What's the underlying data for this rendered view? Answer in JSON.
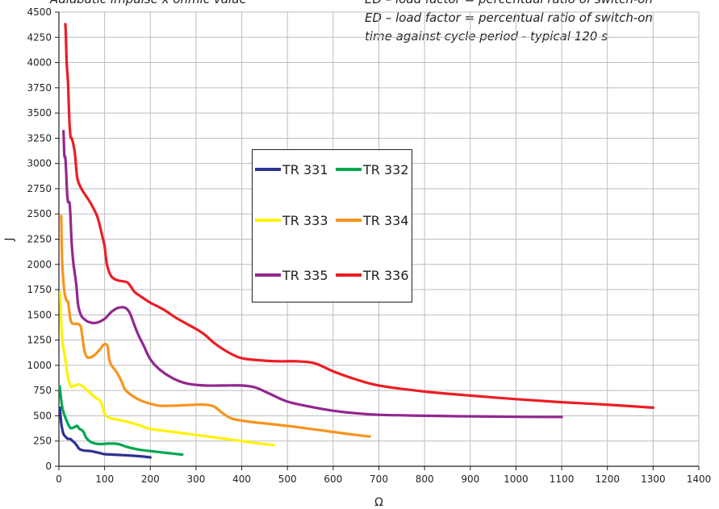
{
  "notes": {
    "left": "Adiabatic impulse x ohmic value",
    "right_lines": [
      "ED – load factor = percentual ratio of switch-on",
      "ED – load factor = percentual ratio of switch-on",
      "time against cycle period - typical 120 s"
    ]
  },
  "colors": {
    "grid": "#bdbdbd",
    "axis": "#231f20",
    "TR 331": "#2e3192",
    "TR 332": "#00a651",
    "TR 333": "#fff200",
    "TR 334": "#f7941d",
    "TR 335": "#92278f",
    "TR 336": "#ed1c24"
  },
  "chart_data": {
    "type": "line",
    "title": "",
    "xlabel": "Ω",
    "ylabel": "J",
    "xlim": [
      0,
      1400
    ],
    "ylim": [
      0,
      4500
    ],
    "xticks": [
      "0",
      "100",
      "200",
      "300",
      "400",
      "500",
      "600",
      "700",
      "800",
      "900",
      "1000",
      "1100",
      "1200",
      "1300",
      "1400"
    ],
    "yticks": [
      "0",
      "250",
      "500",
      "750",
      "1000",
      "1250",
      "1500",
      "1750",
      "2000",
      "2250",
      "2500",
      "2750",
      "3000",
      "3250",
      "3500",
      "3750",
      "4000",
      "4250",
      "4500"
    ],
    "grid": true,
    "legend_position": "center",
    "series": [
      {
        "name": "TR 331",
        "points": [
          [
            2,
            580
          ],
          [
            4,
            480
          ],
          [
            6,
            400
          ],
          [
            10,
            320
          ],
          [
            15,
            290
          ],
          [
            20,
            270
          ],
          [
            25,
            270
          ],
          [
            30,
            250
          ],
          [
            35,
            230
          ],
          [
            40,
            200
          ],
          [
            45,
            170
          ],
          [
            55,
            155
          ],
          [
            70,
            150
          ],
          [
            90,
            130
          ],
          [
            100,
            120
          ],
          [
            120,
            115
          ],
          [
            150,
            108
          ],
          [
            175,
            100
          ],
          [
            200,
            88
          ]
        ]
      },
      {
        "name": "TR 332",
        "points": [
          [
            2,
            790
          ],
          [
            4,
            690
          ],
          [
            8,
            570
          ],
          [
            12,
            510
          ],
          [
            16,
            460
          ],
          [
            20,
            420
          ],
          [
            25,
            380
          ],
          [
            30,
            380
          ],
          [
            35,
            390
          ],
          [
            40,
            400
          ],
          [
            45,
            370
          ],
          [
            50,
            360
          ],
          [
            55,
            330
          ],
          [
            60,
            280
          ],
          [
            70,
            240
          ],
          [
            80,
            225
          ],
          [
            90,
            220
          ],
          [
            110,
            225
          ],
          [
            130,
            220
          ],
          [
            150,
            190
          ],
          [
            175,
            165
          ],
          [
            200,
            150
          ],
          [
            230,
            135
          ],
          [
            270,
            115
          ]
        ]
      },
      {
        "name": "TR 333",
        "points": [
          [
            3,
            1720
          ],
          [
            5,
            1430
          ],
          [
            8,
            1230
          ],
          [
            12,
            1120
          ],
          [
            16,
            1000
          ],
          [
            20,
            880
          ],
          [
            25,
            800
          ],
          [
            30,
            790
          ],
          [
            40,
            810
          ],
          [
            50,
            800
          ],
          [
            60,
            760
          ],
          [
            70,
            720
          ],
          [
            80,
            680
          ],
          [
            90,
            650
          ],
          [
            95,
            600
          ],
          [
            100,
            520
          ],
          [
            110,
            480
          ],
          [
            130,
            460
          ],
          [
            150,
            440
          ],
          [
            180,
            400
          ],
          [
            200,
            370
          ],
          [
            250,
            340
          ],
          [
            300,
            310
          ],
          [
            350,
            280
          ],
          [
            400,
            250
          ],
          [
            430,
            230
          ],
          [
            470,
            210
          ]
        ]
      },
      {
        "name": "TR 334",
        "points": [
          [
            5,
            2480
          ],
          [
            7,
            2050
          ],
          [
            10,
            1820
          ],
          [
            13,
            1700
          ],
          [
            17,
            1640
          ],
          [
            20,
            1630
          ],
          [
            22,
            1560
          ],
          [
            25,
            1460
          ],
          [
            28,
            1420
          ],
          [
            35,
            1410
          ],
          [
            42,
            1410
          ],
          [
            48,
            1380
          ],
          [
            52,
            1260
          ],
          [
            56,
            1140
          ],
          [
            62,
            1080
          ],
          [
            70,
            1080
          ],
          [
            80,
            1110
          ],
          [
            90,
            1160
          ],
          [
            97,
            1200
          ],
          [
            103,
            1210
          ],
          [
            107,
            1180
          ],
          [
            110,
            1060
          ],
          [
            115,
            1000
          ],
          [
            125,
            940
          ],
          [
            135,
            860
          ],
          [
            145,
            760
          ],
          [
            160,
            700
          ],
          [
            180,
            650
          ],
          [
            200,
            620
          ],
          [
            220,
            600
          ],
          [
            250,
            600
          ],
          [
            300,
            610
          ],
          [
            320,
            610
          ],
          [
            340,
            590
          ],
          [
            360,
            520
          ],
          [
            380,
            470
          ],
          [
            420,
            440
          ],
          [
            500,
            400
          ],
          [
            550,
            370
          ],
          [
            600,
            340
          ],
          [
            650,
            310
          ],
          [
            680,
            295
          ]
        ]
      },
      {
        "name": "TR 335",
        "points": [
          [
            10,
            3320
          ],
          [
            12,
            3080
          ],
          [
            14,
            3060
          ],
          [
            16,
            2900
          ],
          [
            18,
            2700
          ],
          [
            20,
            2620
          ],
          [
            24,
            2580
          ],
          [
            28,
            2200
          ],
          [
            32,
            2000
          ],
          [
            38,
            1800
          ],
          [
            42,
            1600
          ],
          [
            48,
            1500
          ],
          [
            55,
            1460
          ],
          [
            65,
            1430
          ],
          [
            80,
            1420
          ],
          [
            100,
            1460
          ],
          [
            115,
            1530
          ],
          [
            130,
            1570
          ],
          [
            145,
            1570
          ],
          [
            155,
            1520
          ],
          [
            165,
            1400
          ],
          [
            175,
            1290
          ],
          [
            185,
            1200
          ],
          [
            200,
            1060
          ],
          [
            220,
            960
          ],
          [
            250,
            870
          ],
          [
            280,
            820
          ],
          [
            320,
            800
          ],
          [
            360,
            800
          ],
          [
            400,
            800
          ],
          [
            430,
            780
          ],
          [
            460,
            720
          ],
          [
            500,
            640
          ],
          [
            550,
            590
          ],
          [
            600,
            550
          ],
          [
            650,
            525
          ],
          [
            700,
            510
          ],
          [
            800,
            500
          ],
          [
            900,
            495
          ],
          [
            1000,
            490
          ],
          [
            1100,
            488
          ]
        ]
      },
      {
        "name": "TR 336",
        "points": [
          [
            14,
            4380
          ],
          [
            15,
            4300
          ],
          [
            17,
            4000
          ],
          [
            20,
            3800
          ],
          [
            22,
            3520
          ],
          [
            25,
            3280
          ],
          [
            28,
            3250
          ],
          [
            31,
            3200
          ],
          [
            35,
            3100
          ],
          [
            40,
            2860
          ],
          [
            48,
            2760
          ],
          [
            56,
            2700
          ],
          [
            65,
            2640
          ],
          [
            75,
            2560
          ],
          [
            85,
            2460
          ],
          [
            95,
            2280
          ],
          [
            100,
            2180
          ],
          [
            105,
            2000
          ],
          [
            115,
            1880
          ],
          [
            130,
            1840
          ],
          [
            150,
            1820
          ],
          [
            165,
            1730
          ],
          [
            180,
            1680
          ],
          [
            200,
            1620
          ],
          [
            230,
            1550
          ],
          [
            260,
            1460
          ],
          [
            300,
            1360
          ],
          [
            320,
            1300
          ],
          [
            340,
            1220
          ],
          [
            370,
            1130
          ],
          [
            400,
            1070
          ],
          [
            440,
            1050
          ],
          [
            480,
            1040
          ],
          [
            520,
            1040
          ],
          [
            560,
            1020
          ],
          [
            600,
            940
          ],
          [
            650,
            860
          ],
          [
            700,
            800
          ],
          [
            800,
            740
          ],
          [
            900,
            700
          ],
          [
            1000,
            665
          ],
          [
            1100,
            635
          ],
          [
            1200,
            610
          ],
          [
            1300,
            580
          ]
        ]
      }
    ]
  }
}
